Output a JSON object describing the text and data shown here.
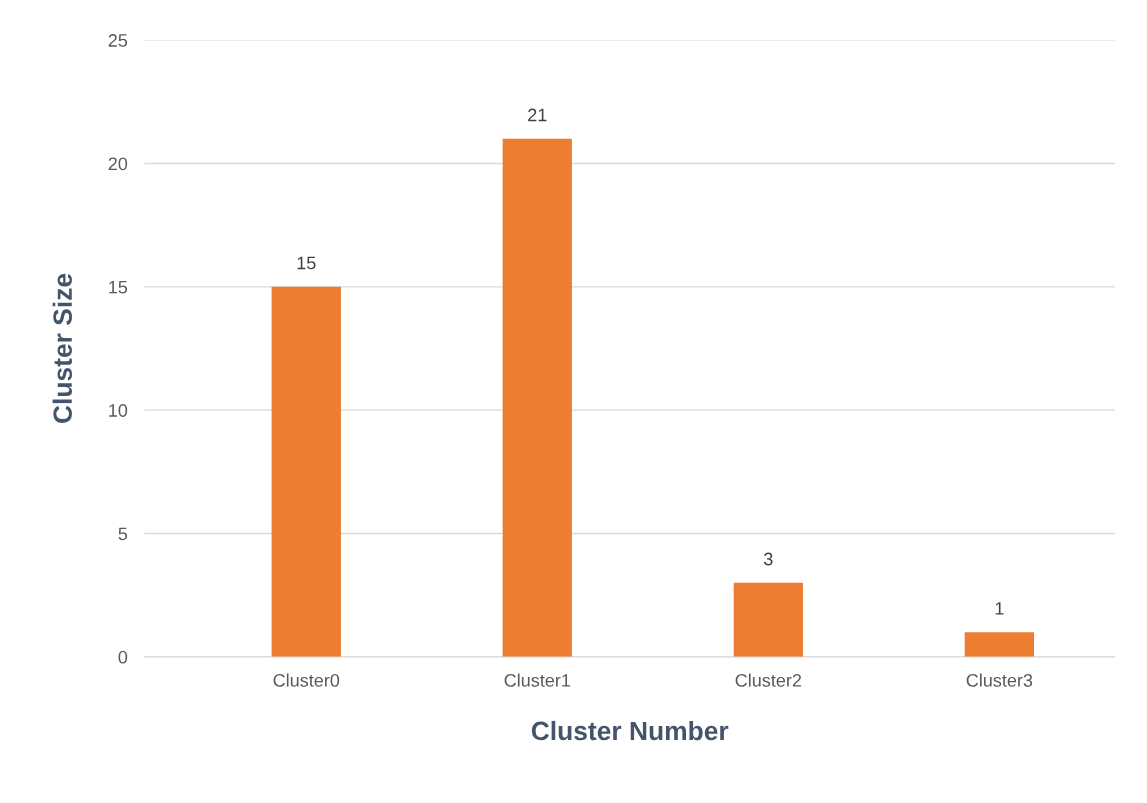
{
  "chart_data": {
    "type": "bar",
    "xlabel": "Cluster Number",
    "ylabel": "Cluster Size",
    "categories": [
      "Cluster0",
      "Cluster1",
      "Cluster2",
      "Cluster3"
    ],
    "values": [
      15,
      21,
      3,
      1
    ],
    "color": "#ed7d31",
    "ylim": [
      0,
      25
    ],
    "yticks": [
      0,
      5,
      10,
      15,
      20,
      25
    ],
    "grid": "y",
    "data_labels": true,
    "legend": false
  }
}
